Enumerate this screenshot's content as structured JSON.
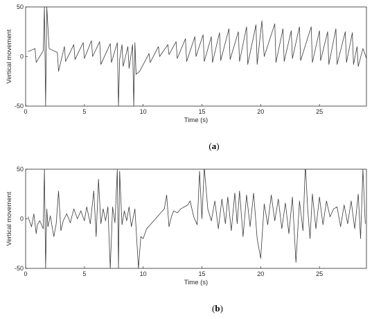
{
  "chart_data": [
    {
      "type": "line",
      "panel_label": {
        "open": "(",
        "letter": "a",
        "close": ")"
      },
      "xlabel": "Time (s)",
      "ylabel": "Vertical movement",
      "xlim": [
        0,
        29
      ],
      "ylim": [
        -50,
        50
      ],
      "xticks": [
        0,
        5,
        10,
        15,
        20,
        25
      ],
      "yticks": [
        -50,
        0,
        50
      ],
      "grid": false,
      "series": [
        {
          "color": "#3a3a3a",
          "x": [
            0.2,
            0.8,
            0.9,
            1.0,
            1.5,
            1.6,
            1.7,
            1.8,
            2.0,
            2.7,
            2.8,
            3.3,
            3.4,
            4.1,
            4.2,
            4.9,
            5.0,
            5.6,
            5.7,
            6.3,
            6.4,
            7.2,
            7.3,
            7.8,
            7.9,
            8.0,
            8.2,
            8.3,
            8.7,
            8.8,
            9.1,
            9.2,
            9.3,
            9.4,
            9.7,
            10.5,
            10.6,
            11.3,
            11.4,
            12.1,
            12.2,
            12.8,
            12.9,
            13.6,
            13.7,
            14.4,
            14.5,
            15.1,
            15.2,
            15.8,
            15.9,
            16.5,
            16.6,
            17.3,
            17.4,
            18.1,
            18.2,
            18.8,
            18.9,
            19.6,
            19.7,
            20.1,
            20.3,
            21.2,
            21.3,
            21.9,
            22.0,
            22.6,
            22.7,
            23.3,
            23.4,
            24.3,
            24.4,
            25.0,
            25.1,
            25.7,
            25.8,
            26.4,
            26.5,
            27.2,
            27.3,
            27.8,
            27.9,
            28.2,
            28.3,
            28.7,
            28.8,
            29.0
          ],
          "y": [
            5,
            8,
            -6,
            -4,
            6,
            50,
            -50,
            50,
            8,
            4,
            -15,
            10,
            -5,
            12,
            -3,
            14,
            -2,
            16,
            0,
            15,
            -8,
            13,
            -6,
            14,
            -50,
            -3,
            12,
            -10,
            10,
            -12,
            12,
            -50,
            14,
            -18,
            -15,
            3,
            -6,
            10,
            0,
            12,
            2,
            15,
            -2,
            18,
            -5,
            20,
            0,
            22,
            -5,
            20,
            -6,
            24,
            -4,
            28,
            -3,
            25,
            -5,
            30,
            -8,
            32,
            -8,
            36,
            0,
            33,
            -6,
            28,
            -5,
            26,
            -2,
            30,
            -4,
            30,
            -6,
            26,
            -4,
            25,
            -8,
            28,
            -8,
            25,
            -6,
            24,
            -8,
            10,
            -10,
            8,
            5,
            -2
          ]
        }
      ]
    },
    {
      "type": "line",
      "panel_label": {
        "open": "(",
        "letter": "b",
        "close": ")"
      },
      "xlabel": "Time (s)",
      "ylabel": "Vertical movement",
      "xlim": [
        0,
        29
      ],
      "ylim": [
        -50,
        50
      ],
      "xticks": [
        0,
        5,
        10,
        15,
        20,
        25
      ],
      "yticks": [
        -50,
        0,
        50
      ],
      "grid": false,
      "series": [
        {
          "color": "#3a3a3a",
          "x": [
            0.2,
            0.5,
            0.7,
            0.9,
            1.0,
            1.2,
            1.5,
            1.6,
            1.7,
            1.8,
            1.9,
            2.1,
            2.4,
            2.6,
            2.8,
            3.0,
            3.2,
            3.5,
            3.8,
            4.1,
            4.4,
            4.7,
            5.0,
            5.2,
            5.5,
            5.8,
            6.0,
            6.2,
            6.4,
            6.6,
            6.8,
            7.0,
            7.2,
            7.4,
            7.6,
            7.8,
            7.9,
            8.0,
            8.2,
            8.4,
            8.6,
            8.8,
            9.0,
            9.3,
            9.6,
            9.8,
            10.0,
            10.3,
            10.6,
            10.9,
            11.2,
            11.5,
            11.8,
            12.0,
            12.2,
            12.4,
            12.6,
            12.9,
            13.2,
            13.5,
            13.8,
            14.0,
            14.3,
            14.6,
            14.8,
            15.0,
            15.2,
            15.5,
            15.8,
            16.1,
            16.4,
            16.7,
            17.0,
            17.2,
            17.5,
            17.8,
            18.0,
            18.2,
            18.5,
            18.8,
            19.1,
            19.4,
            19.7,
            20.0,
            20.3,
            20.6,
            20.9,
            21.2,
            21.5,
            21.8,
            22.1,
            22.4,
            22.7,
            23.0,
            23.3,
            23.6,
            23.8,
            24.0,
            24.2,
            24.4,
            24.7,
            25.0,
            25.3,
            25.6,
            25.9,
            26.2,
            26.5,
            26.8,
            27.1,
            27.4,
            27.7,
            28.0,
            28.3,
            28.5,
            28.7,
            28.9
          ],
          "y": [
            2,
            -8,
            5,
            -15,
            -6,
            -2,
            -10,
            50,
            -50,
            10,
            -8,
            3,
            -18,
            -5,
            28,
            -12,
            -2,
            5,
            -4,
            10,
            0,
            8,
            -2,
            12,
            -5,
            28,
            -18,
            40,
            -5,
            10,
            -2,
            12,
            -50,
            12,
            -4,
            50,
            -50,
            48,
            -6,
            8,
            -2,
            12,
            -8,
            10,
            -50,
            -18,
            -20,
            -10,
            -6,
            -2,
            2,
            6,
            10,
            24,
            -8,
            2,
            8,
            6,
            10,
            12,
            14,
            18,
            2,
            -6,
            48,
            0,
            52,
            10,
            -2,
            18,
            -10,
            20,
            -5,
            22,
            -12,
            26,
            -5,
            28,
            -18,
            24,
            -8,
            26,
            -20,
            -40,
            15,
            -6,
            24,
            -2,
            20,
            -10,
            16,
            -15,
            22,
            -44,
            18,
            -12,
            55,
            10,
            -20,
            25,
            -10,
            22,
            -6,
            18,
            2,
            10,
            12,
            -8,
            14,
            -5,
            18,
            -10,
            25,
            -20,
            50,
            -5
          ]
        }
      ]
    }
  ]
}
